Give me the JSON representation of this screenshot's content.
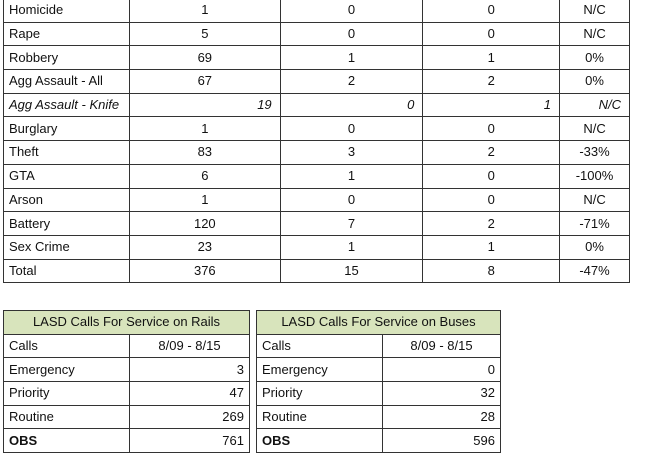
{
  "crime_table": {
    "rows": [
      {
        "label": "Homicide",
        "v1": "1",
        "v2": "0",
        "v3": "0",
        "pct": "N/C"
      },
      {
        "label": "Rape",
        "v1": "5",
        "v2": "0",
        "v3": "0",
        "pct": "N/C"
      },
      {
        "label": "Robbery",
        "v1": "69",
        "v2": "1",
        "v3": "1",
        "pct": "0%"
      },
      {
        "label": "Agg Assault - All",
        "v1": "67",
        "v2": "2",
        "v3": "2",
        "pct": "0%"
      },
      {
        "label": "Agg Assault - Knife",
        "v1": "19",
        "v2": "0",
        "v3": "1",
        "pct": "N/C",
        "italic": true
      },
      {
        "label": "Burglary",
        "v1": "1",
        "v2": "0",
        "v3": "0",
        "pct": "N/C"
      },
      {
        "label": "Theft",
        "v1": "83",
        "v2": "3",
        "v3": "2",
        "pct": "-33%"
      },
      {
        "label": "GTA",
        "v1": "6",
        "v2": "1",
        "v3": "0",
        "pct": "-100%"
      },
      {
        "label": "Arson",
        "v1": "1",
        "v2": "0",
        "v3": "0",
        "pct": "N/C"
      },
      {
        "label": "Battery",
        "v1": "120",
        "v2": "7",
        "v3": "2",
        "pct": "-71%"
      },
      {
        "label": "Sex Crime",
        "v1": "23",
        "v2": "1",
        "v3": "1",
        "pct": "0%"
      },
      {
        "label": "Total",
        "v1": "376",
        "v2": "15",
        "v3": "8",
        "pct": "-47%"
      }
    ]
  },
  "rails": {
    "title": "LASD Calls For Service on Rails",
    "col_label": "Calls",
    "col_date": "8/09 - 8/15",
    "rows": [
      {
        "label": "Emergency",
        "value": "3"
      },
      {
        "label": "Priority",
        "value": "47"
      },
      {
        "label": "Routine",
        "value": "269"
      },
      {
        "label": "OBS",
        "value": "761"
      }
    ]
  },
  "buses": {
    "title": "LASD Calls For Service on Buses",
    "col_label": "Calls",
    "col_date": "8/09 - 8/15",
    "rows": [
      {
        "label": "Emergency",
        "value": "0"
      },
      {
        "label": "Priority",
        "value": "32"
      },
      {
        "label": "Routine",
        "value": "28"
      },
      {
        "label": "OBS",
        "value": "596"
      }
    ]
  },
  "colors": {
    "header_bg": "#d8e4bc"
  }
}
